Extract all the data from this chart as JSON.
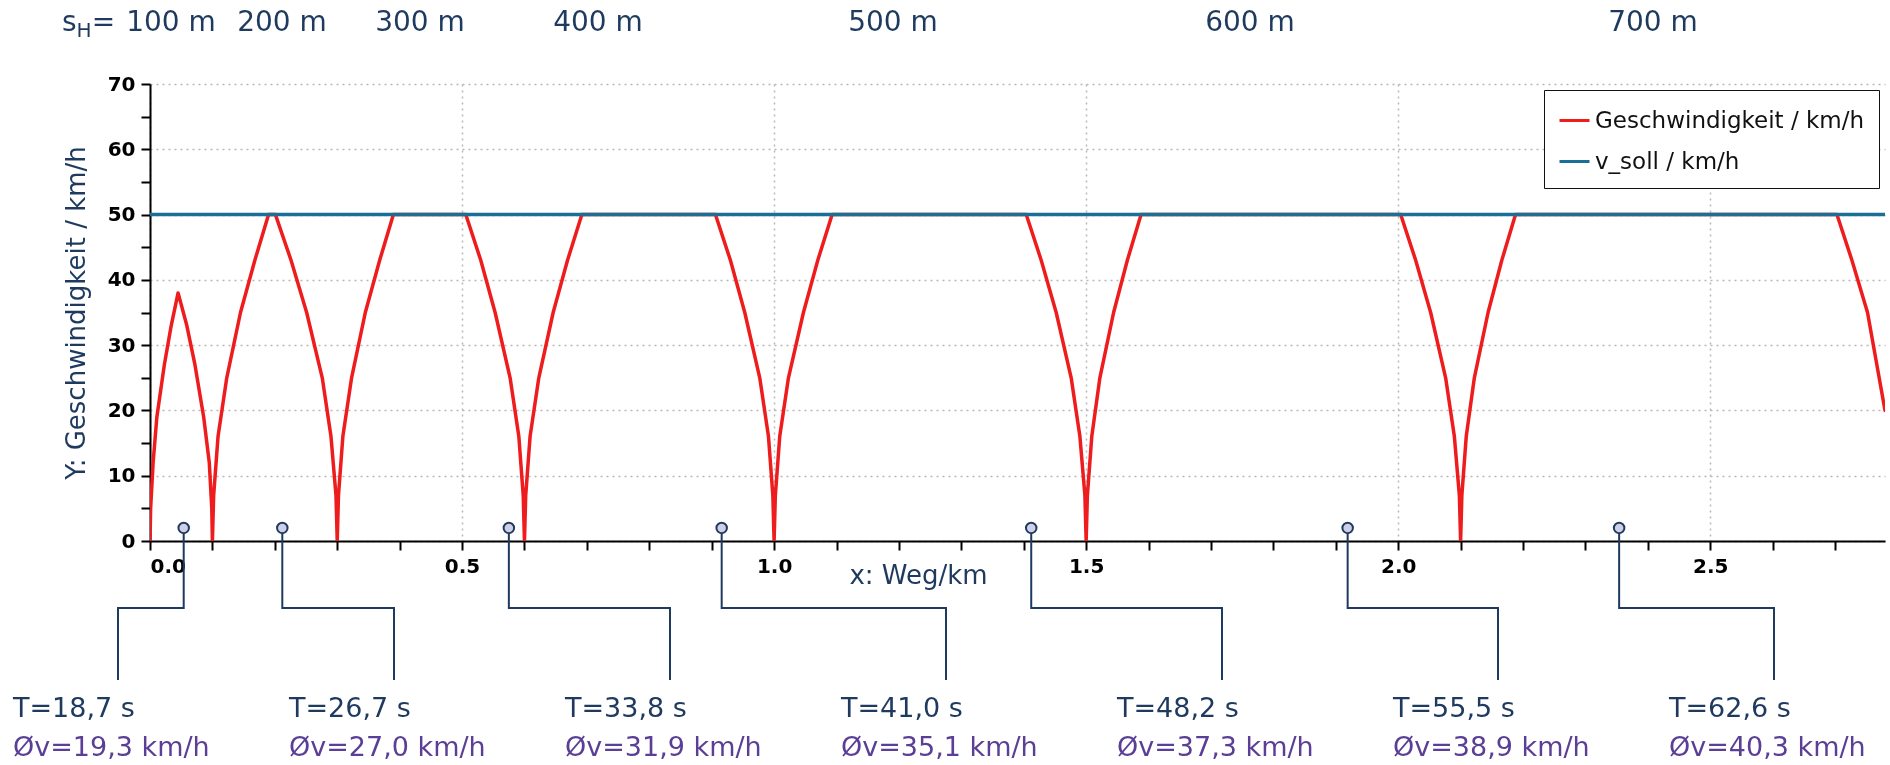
{
  "chart_data": {
    "type": "line",
    "xlabel": "x: Weg/km",
    "ylabel": "Y: Geschwindigkeit / km/h",
    "xlim": [
      0,
      2.78
    ],
    "ylim": [
      0,
      70
    ],
    "xticks": [
      {
        "value": 0,
        "label": "0.0"
      },
      {
        "value": 0.1,
        "label": null
      },
      {
        "value": 0.2,
        "label": null
      },
      {
        "value": 0.3,
        "label": null
      },
      {
        "value": 0.4,
        "label": null
      },
      0.5,
      {
        "value": 0.6,
        "label": null
      },
      {
        "value": 0.7,
        "label": null
      },
      {
        "value": 0.8,
        "label": null
      },
      {
        "value": 0.9,
        "label": null
      },
      {
        "value": 1,
        "label": "1.0"
      },
      {
        "value": 1.1,
        "label": null
      },
      {
        "value": 1.2,
        "label": null
      },
      {
        "value": 1.3,
        "label": null
      },
      {
        "value": 1.4,
        "label": null
      },
      1.5,
      {
        "value": 1.6,
        "label": null
      },
      {
        "value": 1.7,
        "label": null
      },
      {
        "value": 1.8,
        "label": null
      },
      {
        "value": 1.9,
        "label": null
      },
      {
        "value": 2,
        "label": "2.0"
      },
      {
        "value": 2.1,
        "label": null
      },
      {
        "value": 2.2,
        "label": null
      },
      {
        "value": 2.3,
        "label": null
      },
      {
        "value": 2.4,
        "label": null
      },
      2.5,
      {
        "value": 2.6,
        "label": null
      },
      {
        "value": 2.7,
        "label": null
      }
    ],
    "yticks": [
      0,
      {
        "value": 5,
        "label": null
      },
      10,
      {
        "value": 15,
        "label": null
      },
      20,
      {
        "value": 25,
        "label": null
      },
      30,
      {
        "value": 35,
        "label": null
      },
      40,
      {
        "value": 45,
        "label": null
      },
      50,
      {
        "value": 55,
        "label": null
      },
      60,
      {
        "value": 65,
        "label": null
      },
      70
    ],
    "grid": true,
    "legend": "top right",
    "series": [
      {
        "name": "Geschwindigkeit / km/h",
        "color": "#ee1c1c",
        "x": [
          0,
          0.001,
          0.005,
          0.011,
          0.023,
          0.034,
          0.045,
          0.059,
          0.072,
          0.086,
          0.095,
          0.099,
          0.1,
          0.102,
          0.109,
          0.123,
          0.145,
          0.168,
          0.19,
          0.201,
          0.226,
          0.251,
          0.276,
          0.29,
          0.298,
          0.3,
          0.302,
          0.309,
          0.323,
          0.345,
          0.368,
          0.39,
          0.506,
          0.53,
          0.553,
          0.577,
          0.591,
          0.598,
          0.6,
          0.602,
          0.609,
          0.623,
          0.646,
          0.669,
          0.692,
          0.906,
          0.93,
          0.953,
          0.977,
          0.991,
          0.998,
          1.0,
          1.002,
          1.009,
          1.023,
          1.047,
          1.07,
          1.093,
          1.404,
          1.428,
          1.452,
          1.476,
          1.49,
          1.498,
          1.5,
          1.502,
          1.509,
          1.522,
          1.544,
          1.566,
          1.588,
          2.004,
          2.028,
          2.052,
          2.076,
          2.09,
          2.098,
          2.1,
          2.102,
          2.109,
          2.122,
          2.144,
          2.166,
          2.188,
          2.703,
          2.727,
          2.752,
          2.78
        ],
        "values": [
          0,
          5,
          12,
          19,
          27,
          33,
          38,
          33,
          27,
          19,
          12,
          5,
          0,
          7,
          16,
          25,
          35,
          43,
          50,
          50,
          43,
          35,
          25,
          16,
          7,
          0,
          7,
          16,
          25,
          35,
          43,
          50,
          50,
          43,
          35,
          25,
          16,
          7,
          0,
          7,
          16,
          25,
          35,
          43,
          50,
          50,
          43,
          35,
          25,
          16,
          7,
          0,
          7,
          16,
          25,
          35,
          43,
          50,
          50,
          43,
          35,
          25,
          16,
          7,
          0,
          7,
          16,
          25,
          35,
          43,
          50,
          50,
          43,
          35,
          25,
          16,
          7,
          0,
          7,
          16,
          25,
          35,
          43,
          50,
          50,
          43,
          35,
          20
        ]
      },
      {
        "name": "v_soll / km/h",
        "color": "#1b6f96",
        "x": [
          0,
          2.78
        ],
        "values": [
          50,
          50
        ]
      }
    ],
    "annotations": [
      "s$_{H}$=",
      "100 m",
      "200 m",
      "300 m",
      "400 m",
      "500 m",
      "600 m",
      "700 m",
      {
        "text": "T=18,7 s",
        "x": 0.054,
        "y": 2
      },
      "Øv=19,3 km/h",
      {
        "text": "T=26,7 s",
        "x": 0.212,
        "y": 2
      },
      "Øv=27,0 km/h",
      {
        "text": "T=33,8 s",
        "x": 0.575,
        "y": 2
      },
      "Øv=31,9 km/h",
      {
        "text": "T=41,0 s",
        "x": 0.916,
        "y": 2
      },
      "Øv=35,1 km/h",
      {
        "text": "T=48,2 s",
        "x": 1.412,
        "y": 2
      },
      "Øv=37,3 km/h",
      {
        "text": "T=55,5 s",
        "x": 1.919,
        "y": 2
      },
      "Øv=38,9 km/h",
      {
        "text": "T=62,6 s",
        "x": 2.354,
        "y": 2
      },
      "Øv=40,3 km/h"
    ]
  }
}
